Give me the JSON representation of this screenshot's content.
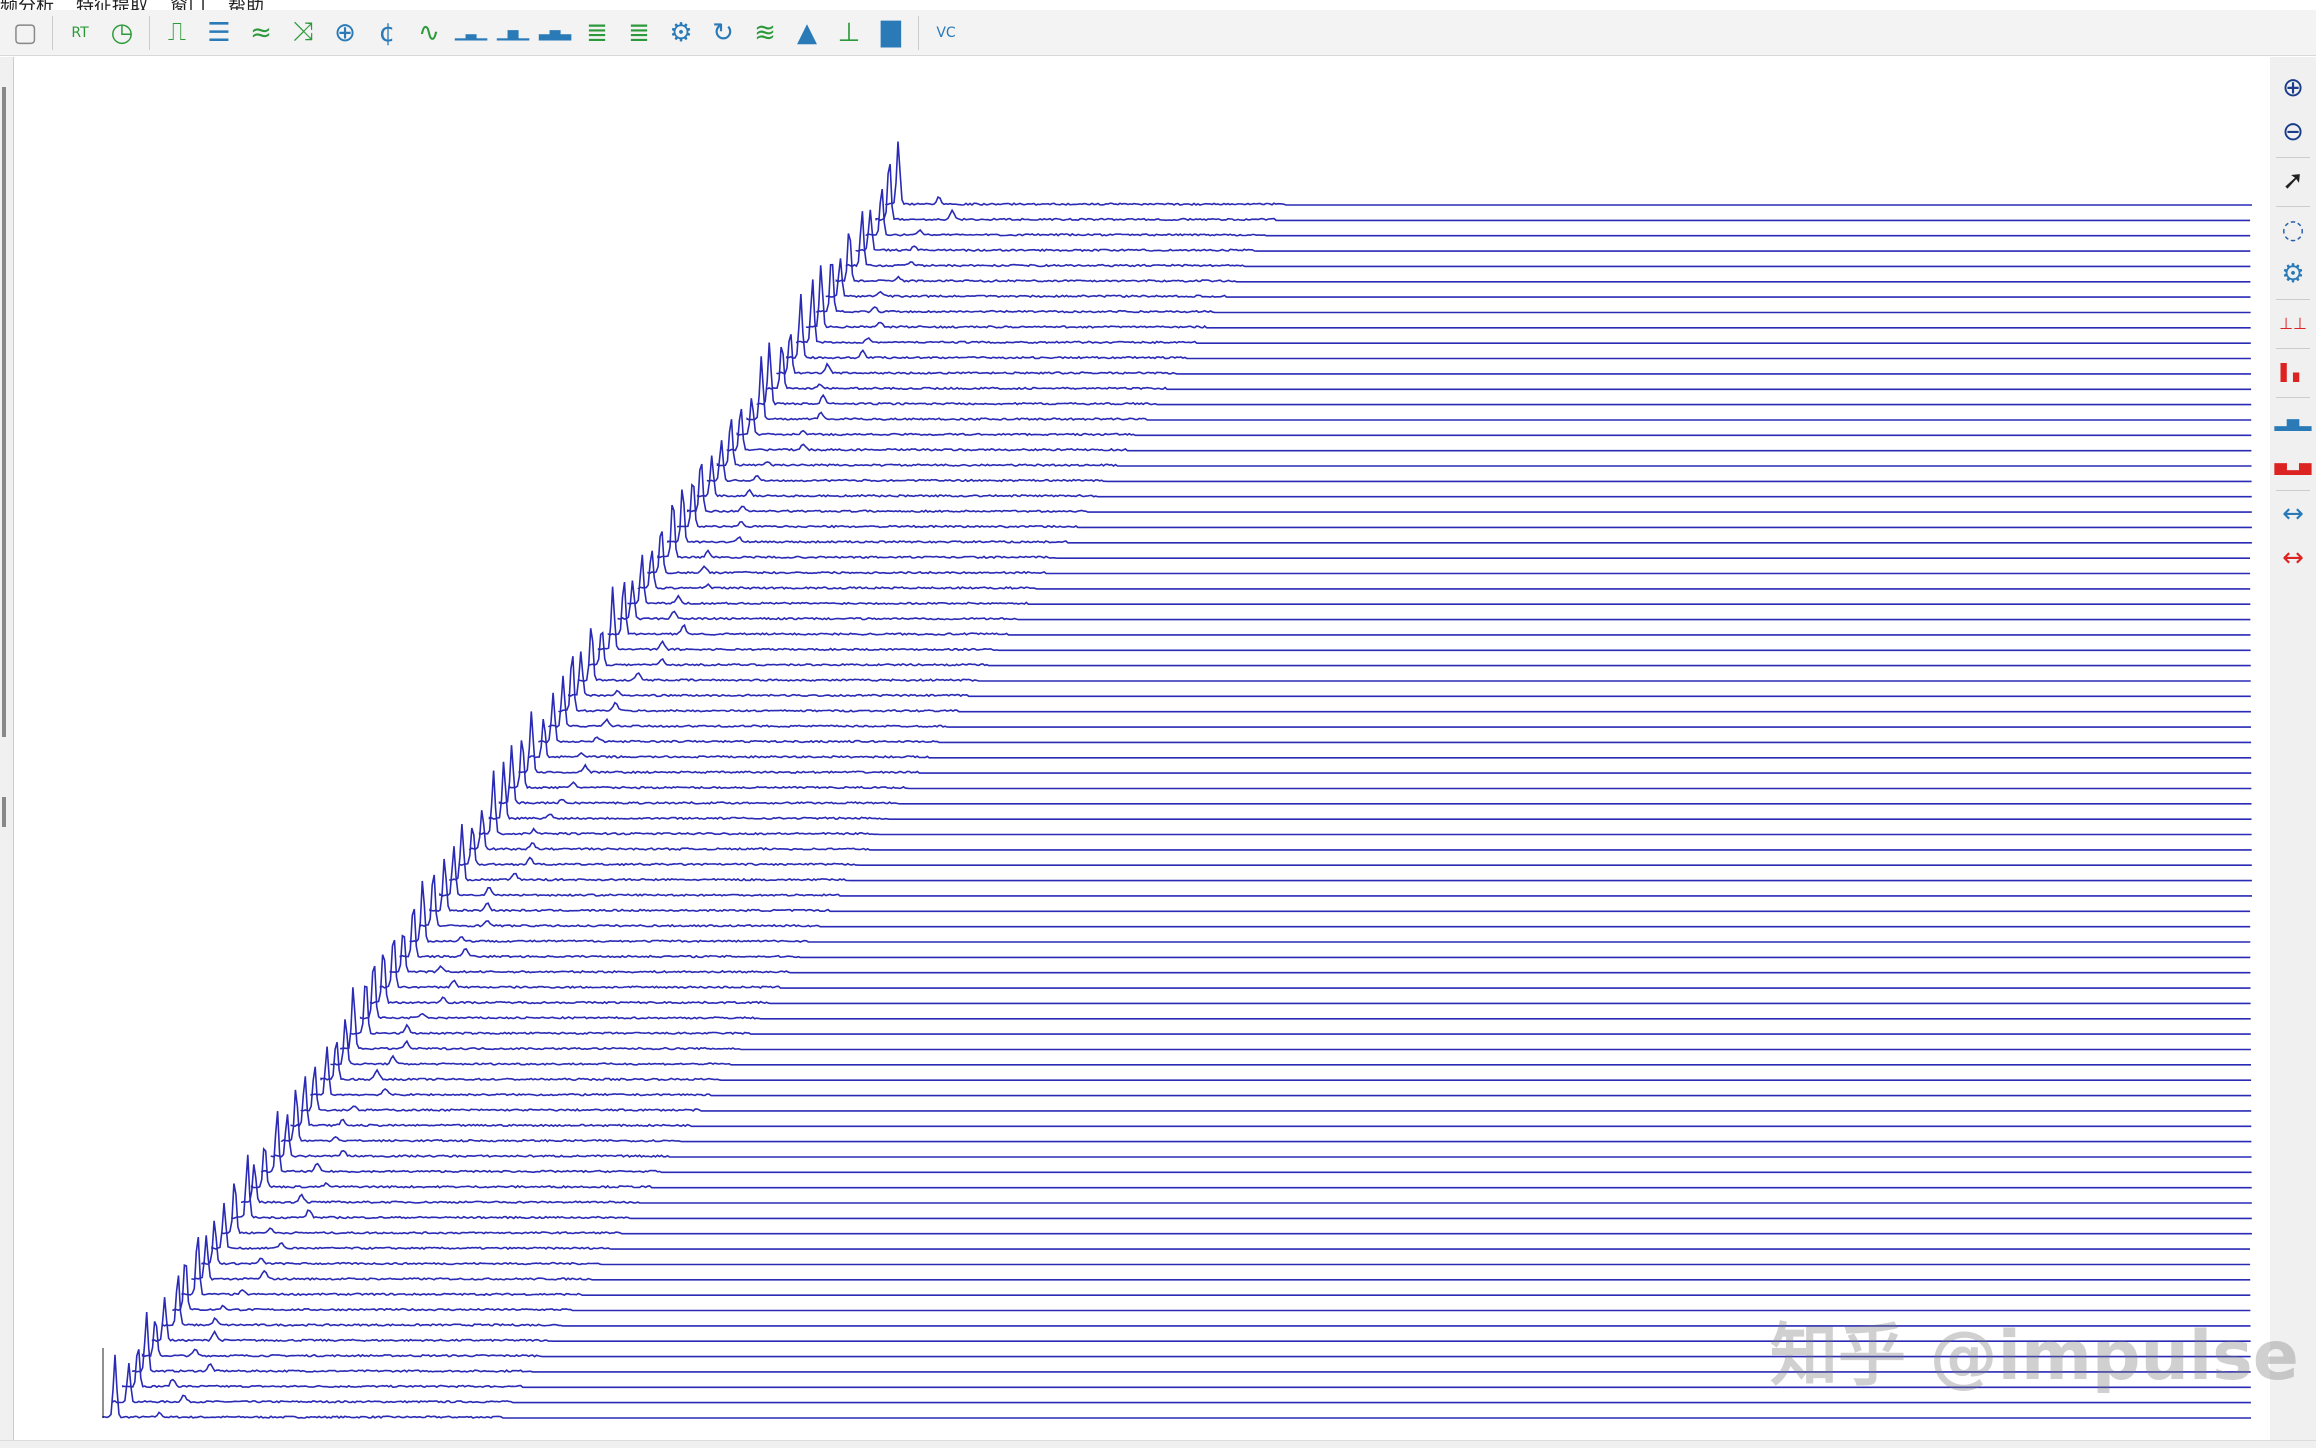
{
  "menu": {
    "items": [
      "频分析",
      "特征提取",
      "窗口",
      "帮助"
    ]
  },
  "toolbar": {
    "items": [
      {
        "icon": "window-icon",
        "glyph": "▢"
      },
      {
        "icon": "rt-trend-icon",
        "glyph": "RT"
      },
      {
        "icon": "time-trend-icon",
        "glyph": "◷"
      },
      {
        "icon": "pulse-wave-icon",
        "glyph": "⎍"
      },
      {
        "icon": "list-icon",
        "glyph": "☰"
      },
      {
        "icon": "multi-trend-icon",
        "glyph": "≈"
      },
      {
        "icon": "cross-trend-icon",
        "glyph": "⤨"
      },
      {
        "icon": "orbit-icon",
        "glyph": "⊕"
      },
      {
        "icon": "centerline-icon",
        "glyph": "¢"
      },
      {
        "icon": "sine-wave-icon",
        "glyph": "∿"
      },
      {
        "icon": "spectrum-icon",
        "glyph": "▁▃▁"
      },
      {
        "icon": "cepstrum-icon",
        "glyph": "▁▅▁"
      },
      {
        "icon": "multi-spectrum-icon",
        "glyph": "▃▅▃"
      },
      {
        "icon": "waterfall-icon",
        "glyph": "≣"
      },
      {
        "icon": "cascade-icon",
        "glyph": "≣"
      },
      {
        "icon": "gear-circle-icon",
        "glyph": "⚙"
      },
      {
        "icon": "circle-rotate-icon",
        "glyph": "↻"
      },
      {
        "icon": "dual-wave-icon",
        "glyph": "≋"
      },
      {
        "icon": "envelope-icon",
        "glyph": "▲"
      },
      {
        "icon": "spectrum-wave-icon",
        "glyph": "⊥"
      },
      {
        "icon": "bar-spectrum-icon",
        "glyph": "▇"
      },
      {
        "icon": "vc-icon",
        "glyph": "VC"
      }
    ]
  },
  "right_toolbar": {
    "items": [
      {
        "icon": "zoom-in-icon",
        "glyph": "⊕",
        "color": "#1a3c8a"
      },
      {
        "icon": "zoom-out-icon",
        "glyph": "⊖",
        "color": "#1a3c8a"
      },
      {
        "icon": "pointer-icon",
        "glyph": "➚",
        "color": "#222"
      },
      {
        "icon": "bearing-icon",
        "glyph": "◌",
        "color": "#2a5ea8"
      },
      {
        "icon": "gear-icon",
        "glyph": "⚙",
        "color": "#2a7ab8"
      },
      {
        "icon": "harmonic-cursor-icon",
        "glyph": "⊥⊥",
        "color": "#d22"
      },
      {
        "icon": "peak-cursor-icon",
        "glyph": "▌▖",
        "color": "#d22"
      },
      {
        "icon": "sideband-icon",
        "glyph": "▂▅▂",
        "color": "#2a7ab8"
      },
      {
        "icon": "sideband-red-icon",
        "glyph": "▅▂▅",
        "color": "#d22"
      },
      {
        "icon": "sideband-range-icon",
        "glyph": "↔",
        "color": "#2a7ab8"
      },
      {
        "icon": "sideband-range-red-icon",
        "glyph": "↔",
        "color": "#d22"
      }
    ]
  },
  "watermark": "知乎 @impulse",
  "chart_data": {
    "type": "line",
    "style": "waterfall",
    "series_count": 80,
    "line_color": "#2a2ab5",
    "axes": "none",
    "grid": false
  }
}
